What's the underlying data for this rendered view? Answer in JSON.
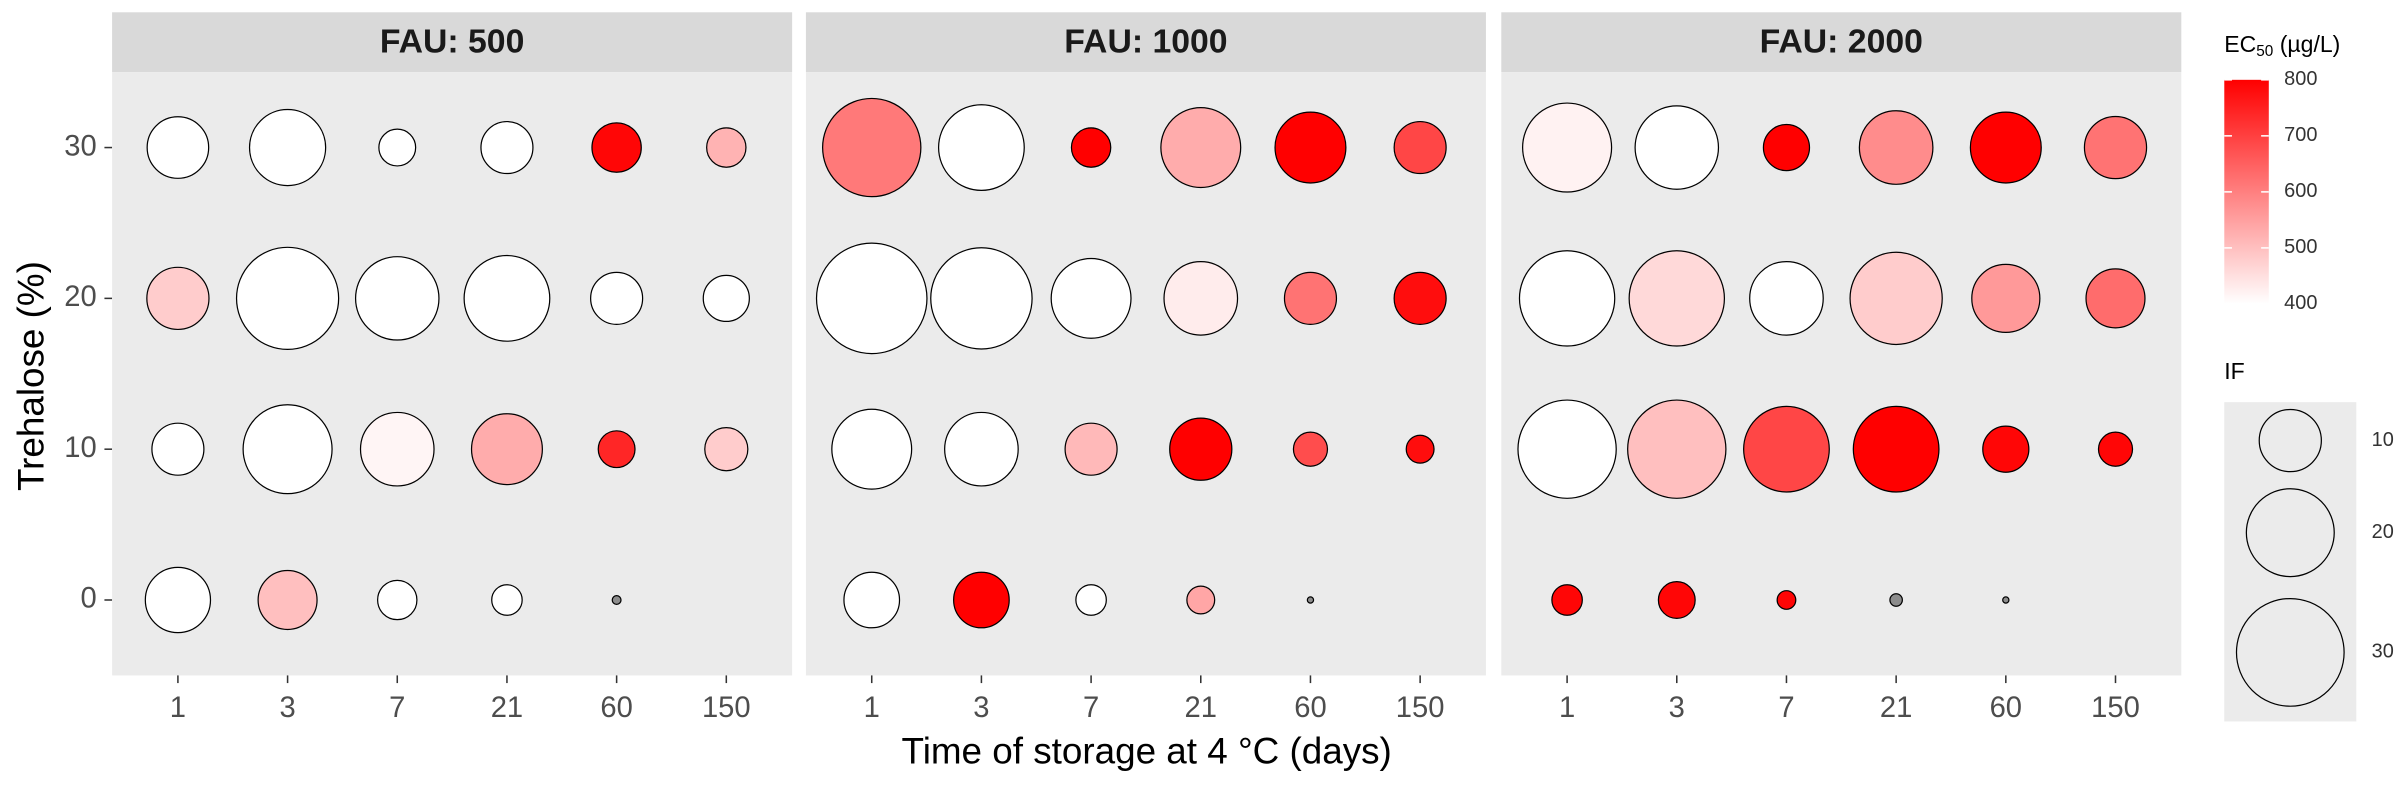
{
  "axes": {
    "xlabel": "Time of storage at 4 °C (days)",
    "ylabel": "Trehalose (%)",
    "ylim": [
      -5,
      35
    ],
    "yticks": [
      0,
      10,
      20,
      30
    ],
    "categories": [
      "1",
      "3",
      "7",
      "21",
      "60",
      "150"
    ],
    "grid": false
  },
  "colorbar": {
    "title_main": "EC",
    "title_sub": "50",
    "title_unit": " (µg/L)",
    "lim": [
      400,
      800
    ],
    "ticks": [
      400,
      500,
      600,
      700,
      800
    ],
    "low_color": "#ffffff",
    "high_color": "#ff0000",
    "na_color": "#8c8c8c"
  },
  "size_legend": {
    "title": "IF",
    "values": [
      10,
      20,
      30
    ]
  },
  "chart_data": [
    {
      "type": "scatter",
      "title": "FAU: 500",
      "points": [
        {
          "x": "1",
          "y": 30,
          "if": 9.8,
          "ec50": 400
        },
        {
          "x": "3",
          "y": 30,
          "if": 15,
          "ec50": 400
        },
        {
          "x": "7",
          "y": 30,
          "if": 3.5,
          "ec50": 400
        },
        {
          "x": "21",
          "y": 30,
          "if": 7,
          "ec50": 400
        },
        {
          "x": "60",
          "y": 30,
          "if": 6.3,
          "ec50": 790
        },
        {
          "x": "150",
          "y": 30,
          "if": 4,
          "ec50": 520
        },
        {
          "x": "1",
          "y": 20,
          "if": 10,
          "ec50": 480
        },
        {
          "x": "3",
          "y": 20,
          "if": 27,
          "ec50": 400
        },
        {
          "x": "7",
          "y": 20,
          "if": 18,
          "ec50": 400
        },
        {
          "x": "21",
          "y": 20,
          "if": 19,
          "ec50": 400
        },
        {
          "x": "60",
          "y": 20,
          "if": 7,
          "ec50": 400
        },
        {
          "x": "150",
          "y": 20,
          "if": 5.5,
          "ec50": 400
        },
        {
          "x": "1",
          "y": 10,
          "if": 7,
          "ec50": 400
        },
        {
          "x": "3",
          "y": 10,
          "if": 20.5,
          "ec50": 400
        },
        {
          "x": "7",
          "y": 10,
          "if": 14,
          "ec50": 415
        },
        {
          "x": "21",
          "y": 10,
          "if": 13,
          "ec50": 530
        },
        {
          "x": "60",
          "y": 10,
          "if": 3.5,
          "ec50": 740
        },
        {
          "x": "150",
          "y": 10,
          "if": 4.8,
          "ec50": 480
        },
        {
          "x": "1",
          "y": 0,
          "if": 11,
          "ec50": 400
        },
        {
          "x": "3",
          "y": 0,
          "if": 9,
          "ec50": 500
        },
        {
          "x": "7",
          "y": 0,
          "if": 4,
          "ec50": 400
        },
        {
          "x": "21",
          "y": 0,
          "if": 2.4,
          "ec50": 400
        },
        {
          "x": "60",
          "y": 0,
          "if": 0.2,
          "ec50": null
        }
      ]
    },
    {
      "type": "scatter",
      "title": "FAU: 1000",
      "points": [
        {
          "x": "1",
          "y": 30,
          "if": 25,
          "ec50": 610
        },
        {
          "x": "3",
          "y": 30,
          "if": 19,
          "ec50": 400
        },
        {
          "x": "7",
          "y": 30,
          "if": 4,
          "ec50": 800
        },
        {
          "x": "21",
          "y": 30,
          "if": 16.5,
          "ec50": 530
        },
        {
          "x": "60",
          "y": 30,
          "if": 13,
          "ec50": 800
        },
        {
          "x": "150",
          "y": 30,
          "if": 7,
          "ec50": 690
        },
        {
          "x": "1",
          "y": 20,
          "if": 31.6,
          "ec50": 400
        },
        {
          "x": "3",
          "y": 20,
          "if": 26.6,
          "ec50": 400
        },
        {
          "x": "7",
          "y": 20,
          "if": 16.5,
          "ec50": 400
        },
        {
          "x": "21",
          "y": 20,
          "if": 14,
          "ec50": 430
        },
        {
          "x": "60",
          "y": 20,
          "if": 7,
          "ec50": 620
        },
        {
          "x": "150",
          "y": 20,
          "if": 7,
          "ec50": 780
        },
        {
          "x": "1",
          "y": 10,
          "if": 16.5,
          "ec50": 400
        },
        {
          "x": "3",
          "y": 10,
          "if": 14,
          "ec50": 400
        },
        {
          "x": "7",
          "y": 10,
          "if": 7,
          "ec50": 510
        },
        {
          "x": "21",
          "y": 10,
          "if": 10,
          "ec50": 800
        },
        {
          "x": "60",
          "y": 10,
          "if": 3,
          "ec50": 680
        },
        {
          "x": "150",
          "y": 10,
          "if": 2,
          "ec50": 780
        },
        {
          "x": "1",
          "y": 0,
          "if": 8,
          "ec50": 400
        },
        {
          "x": "3",
          "y": 0,
          "if": 8,
          "ec50": 800
        },
        {
          "x": "7",
          "y": 0,
          "if": 2.4,
          "ec50": 400
        },
        {
          "x": "21",
          "y": 0,
          "if": 2,
          "ec50": 540
        },
        {
          "x": "60",
          "y": 0,
          "if": 0.1,
          "ec50": null
        }
      ]
    },
    {
      "type": "scatter",
      "title": "FAU: 2000",
      "points": [
        {
          "x": "1",
          "y": 30,
          "if": 20.5,
          "ec50": 420
        },
        {
          "x": "3",
          "y": 30,
          "if": 18,
          "ec50": 400
        },
        {
          "x": "7",
          "y": 30,
          "if": 5.5,
          "ec50": 800
        },
        {
          "x": "21",
          "y": 30,
          "if": 14,
          "ec50": 580
        },
        {
          "x": "60",
          "y": 30,
          "if": 13,
          "ec50": 800
        },
        {
          "x": "150",
          "y": 30,
          "if": 10,
          "ec50": 620
        },
        {
          "x": "1",
          "y": 20,
          "if": 23.5,
          "ec50": 400
        },
        {
          "x": "3",
          "y": 20,
          "if": 23.5,
          "ec50": 460
        },
        {
          "x": "7",
          "y": 20,
          "if": 14,
          "ec50": 400
        },
        {
          "x": "21",
          "y": 20,
          "if": 22,
          "ec50": 480
        },
        {
          "x": "60",
          "y": 20,
          "if": 12,
          "ec50": 560
        },
        {
          "x": "150",
          "y": 20,
          "if": 9,
          "ec50": 630
        },
        {
          "x": "1",
          "y": 10,
          "if": 25,
          "ec50": 400
        },
        {
          "x": "3",
          "y": 10,
          "if": 25,
          "ec50": 500
        },
        {
          "x": "7",
          "y": 10,
          "if": 19,
          "ec50": 690
        },
        {
          "x": "21",
          "y": 10,
          "if": 19,
          "ec50": 800
        },
        {
          "x": "60",
          "y": 10,
          "if": 5.5,
          "ec50": 790
        },
        {
          "x": "150",
          "y": 10,
          "if": 3,
          "ec50": 790
        },
        {
          "x": "1",
          "y": 0,
          "if": 2.4,
          "ec50": 790
        },
        {
          "x": "3",
          "y": 0,
          "if": 3.5,
          "ec50": 790
        },
        {
          "x": "7",
          "y": 0,
          "if": 0.9,
          "ec50": 790
        },
        {
          "x": "21",
          "y": 0,
          "if": 0.4,
          "ec50": null
        },
        {
          "x": "60",
          "y": 0,
          "if": 0.1,
          "ec50": null
        }
      ]
    }
  ]
}
